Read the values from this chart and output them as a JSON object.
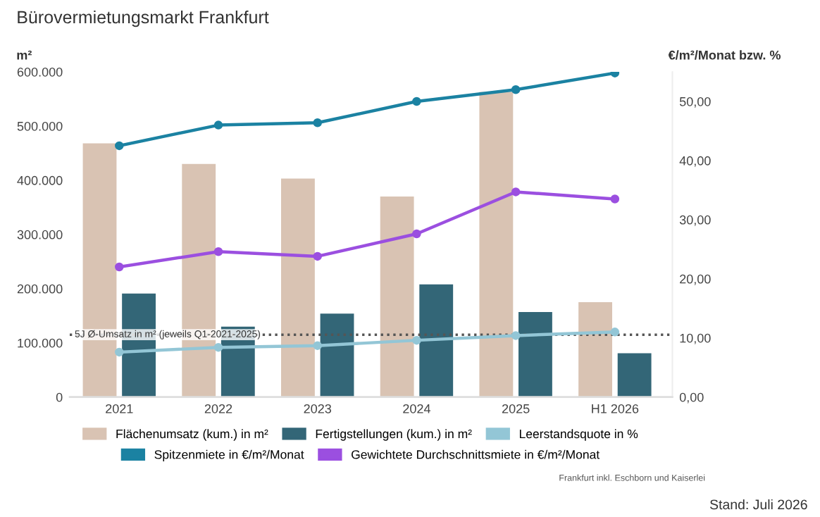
{
  "chart_data": {
    "type": "bar",
    "title": "Bürovermietungsmarkt Frankfurt",
    "ylabel": "m²",
    "y2label": "€/m²/Monat bzw. %",
    "categories": [
      "2021",
      "2022",
      "2023",
      "2024",
      "2025",
      "H1 2026"
    ],
    "series": [
      {
        "name": "Flächenumsatz (kum.) in m²",
        "type": "bar",
        "color": "#d9c3b3",
        "values": [
          468000,
          430000,
          403000,
          370000,
          563000,
          175000
        ]
      },
      {
        "name": "Fertigstellungen (kum.) in m²",
        "type": "bar",
        "color": "#336677",
        "values": [
          191000,
          130000,
          154000,
          208000,
          157000,
          81000
        ]
      },
      {
        "name": "Leerstandsquote in %",
        "type": "line",
        "axis": "y2",
        "color": "#93c6d6",
        "values": [
          7.6,
          8.4,
          8.7,
          9.6,
          10.4,
          11.0
        ]
      },
      {
        "name": "Spitzenmiete in €/m²/Monat",
        "type": "line",
        "axis": "y2",
        "color": "#1b82a2",
        "values": [
          42.5,
          46.0,
          46.4,
          50.0,
          52.0,
          54.8
        ]
      },
      {
        "name": "Gewichtete Durchschnittsmiete in €/m²/Monat",
        "type": "line",
        "axis": "y2",
        "color": "#9b4fe0",
        "values": [
          22.0,
          24.6,
          23.8,
          27.6,
          34.7,
          33.5
        ]
      }
    ],
    "ylim": [
      0,
      600000
    ],
    "yticks": [
      {
        "value": 0,
        "label": "0"
      },
      {
        "value": 100000,
        "label": "100.000"
      },
      {
        "value": 200000,
        "label": "200.000"
      },
      {
        "value": 300000,
        "label": "300.000"
      },
      {
        "value": 400000,
        "label": "400.000"
      },
      {
        "value": 500000,
        "label": "500.000"
      },
      {
        "value": 600000,
        "label": "600.000"
      }
    ],
    "y2lim": [
      0,
      55
    ],
    "y2ticks": [
      {
        "value": 0,
        "label": "0,00"
      },
      {
        "value": 10,
        "label": "10,00"
      },
      {
        "value": 20,
        "label": "20,00"
      },
      {
        "value": 30,
        "label": "30,00"
      },
      {
        "value": 40,
        "label": "40,00"
      },
      {
        "value": 50,
        "label": "50,00"
      }
    ],
    "ref_lines": [
      {
        "axis": "y",
        "value": 115000,
        "label": "5J Ø-Umsatz in m² (jeweils Q1-2021-2025)",
        "color": "#555555",
        "line_style": "dotted"
      }
    ],
    "marker": "circle",
    "line_style": "solid",
    "grid": false,
    "legend": "bottom",
    "annotations": [
      "Frankfurt inkl. Eschborn und Kaiserlei",
      "Stand: Juli 2026"
    ]
  }
}
